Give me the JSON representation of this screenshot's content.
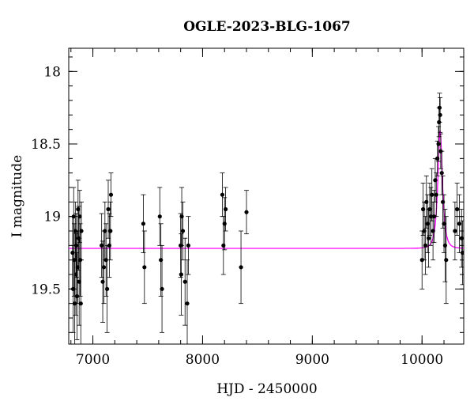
{
  "chart_data": {
    "type": "scatter",
    "title": "OGLE-2023-BLG-1067",
    "xlabel": "HJD - 2450000",
    "ylabel": "I magnitude",
    "xlim": [
      6780,
      10380
    ],
    "ylim": [
      19.88,
      17.84
    ],
    "y_inverted": true,
    "grid": false,
    "x_ticks": [
      7000,
      8000,
      9000,
      10000
    ],
    "x_tick_labels": [
      "7000",
      "8000",
      "9000",
      "10000"
    ],
    "y_ticks": [
      18,
      18.5,
      19,
      19.5
    ],
    "y_tick_labels": [
      "18",
      "18.5",
      "19",
      "19.5"
    ],
    "colors": {
      "points": "#000000",
      "model": "#ff00ff"
    },
    "model": {
      "name": "",
      "baseline": 19.22,
      "peak_mag": 18.41,
      "t0": 10165,
      "tE": 35
    },
    "series": [
      {
        "name": "",
        "x": [
          6815,
          6820,
          6825,
          6830,
          6835,
          6840,
          6845,
          6850,
          6855,
          6860,
          6865,
          6870,
          6875,
          6880,
          6885,
          6890,
          6895,
          7080,
          7090,
          7100,
          7110,
          7120,
          7130,
          7140,
          7150,
          7160,
          7165,
          7460,
          7470,
          7610,
          7620,
          7630,
          7800,
          7805,
          7810,
          7820,
          7840,
          7860,
          7870,
          8180,
          8190,
          8200,
          8210,
          8350,
          8400,
          10000,
          10010,
          10020,
          10030,
          10040,
          10050,
          10060,
          10070,
          10080,
          10090,
          10100,
          10110,
          10120,
          10130,
          10140,
          10150,
          10155,
          10160,
          10165,
          10170,
          10180,
          10190,
          10200,
          10210,
          10220,
          10300,
          10320,
          10340,
          10360,
          10370
        ],
        "y": [
          19.25,
          19.5,
          19.0,
          19.3,
          19.6,
          19.1,
          19.4,
          19.2,
          19.55,
          19.35,
          18.95,
          19.15,
          19.45,
          19.0,
          19.3,
          19.6,
          19.1,
          19.2,
          19.45,
          19.35,
          19.1,
          19.3,
          19.5,
          18.95,
          19.2,
          19.1,
          18.85,
          19.05,
          19.35,
          19.0,
          19.3,
          19.5,
          19.2,
          19.4,
          19.0,
          19.1,
          19.45,
          19.6,
          19.2,
          18.85,
          19.2,
          19.05,
          18.95,
          19.35,
          18.97,
          19.3,
          18.95,
          19.1,
          19.2,
          18.9,
          19.05,
          19.15,
          18.95,
          19.0,
          18.85,
          19.1,
          19.0,
          18.75,
          18.85,
          18.6,
          18.5,
          18.35,
          18.25,
          18.3,
          18.55,
          18.7,
          18.9,
          19.05,
          19.2,
          19.3,
          19.1,
          18.95,
          19.05,
          19.15,
          19.25
        ],
        "err": [
          0.25,
          0.3,
          0.2,
          0.25,
          0.3,
          0.2,
          0.28,
          0.22,
          0.3,
          0.25,
          0.2,
          0.22,
          0.3,
          0.18,
          0.25,
          0.3,
          0.2,
          0.22,
          0.28,
          0.25,
          0.2,
          0.25,
          0.3,
          0.2,
          0.22,
          0.2,
          0.15,
          0.2,
          0.25,
          0.2,
          0.25,
          0.3,
          0.22,
          0.28,
          0.2,
          0.2,
          0.3,
          0.3,
          0.2,
          0.15,
          0.2,
          0.18,
          0.15,
          0.25,
          0.15,
          0.2,
          0.18,
          0.2,
          0.2,
          0.18,
          0.2,
          0.2,
          0.18,
          0.2,
          0.18,
          0.2,
          0.18,
          0.15,
          0.15,
          0.12,
          0.12,
          0.1,
          0.1,
          0.12,
          0.12,
          0.15,
          0.18,
          0.2,
          0.25,
          0.3,
          0.2,
          0.18,
          0.2,
          0.2,
          0.22
        ]
      }
    ]
  }
}
